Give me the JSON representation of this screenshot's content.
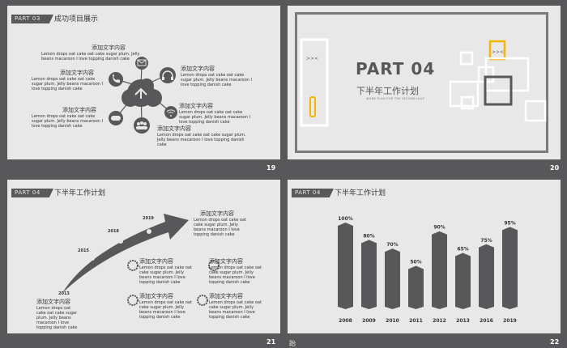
{
  "colors": {
    "background": "#58585a",
    "slide": "#e8e8e8",
    "bar": "#58585a",
    "accent": "#f4b400"
  },
  "slide1": {
    "tag": "PART 03",
    "title": "成功项目展示",
    "number": "19",
    "items": [
      {
        "head": "添加文字内容",
        "body": "Lemon drops oat cake oat cake sugar plum. Jelly beans macaroon I love topping danish cake"
      },
      {
        "head": "添加文字内容",
        "body": "Lemon drops oat cake oat cake sugar plum. Jelly beans macaroon I love topping danish cake"
      },
      {
        "head": "添加文字内容",
        "body": "Lemon drops oat cake oat cake sugar plum. Jelly beans macaroon I love topping danish cake"
      },
      {
        "head": "添加文字内容",
        "body": "Lemon drops oat cake oat cake sugar plum. Jelly beans macaroon I love topping danish cake"
      },
      {
        "head": "添加文字内容",
        "body": "Lemon drops oat cake oat cake sugar plum. Jelly beans macaroon I love topping danish cake"
      },
      {
        "head": "添加文字内容",
        "body": "Lemon drops oat cake oat cake sugar plum. Jelly beans macaroon I love topping danish cake"
      }
    ],
    "icons": [
      "mail-icon",
      "phone-icon",
      "headphones-icon",
      "gamepad-icon",
      "users-icon",
      "wifi-icon",
      "cloud-icon"
    ]
  },
  "slide2": {
    "big": "PART 04",
    "sub": "下半年工作计划",
    "small": "WORK PLAN FOR THE SECOND HALF",
    "number": "20"
  },
  "slide3": {
    "tag": "PART 04",
    "title": "下半年工作计划",
    "number": "21",
    "years": [
      "2019",
      "2018",
      "2015",
      "2013"
    ],
    "main": {
      "head": "添加文字内容",
      "body": "Lemon drops oat cake oat cake sugar plum. Jelly beans macaroon I love topping danish cake"
    },
    "bottom": {
      "head": "添加文字内容",
      "body": "Lemon drops oat cake oat cake sugar plum. Jelly beans macaroon I love topping danish cake"
    },
    "grid": [
      {
        "head": "添加文字内容",
        "body": "Lemon drops oat cake oat cake sugar plum. Jelly beans macaroon I love topping danish cake"
      },
      {
        "head": "添加文字内容",
        "body": "Lemon drops oat cake oat cake sugar plum. Jelly beans macaroon I love topping danish cake"
      },
      {
        "head": "添加文字内容",
        "body": "Lemon drops oat cake oat cake sugar plum. Jelly beans macaroon I love topping danish cake"
      },
      {
        "head": "添加文字内容",
        "body": "Lemon drops oat cake oat cake sugar plum. Jelly beans macaroon I love topping danish cake"
      }
    ]
  },
  "slide4": {
    "tag": "PART 04",
    "title": "下半年工作计划",
    "number": "22"
  },
  "chart_data": {
    "type": "bar",
    "categories": [
      "2008",
      "2009",
      "2010",
      "2011",
      "2012",
      "2013",
      "2016",
      "2019"
    ],
    "values": [
      100,
      80,
      70,
      50,
      90,
      65,
      75,
      95
    ],
    "value_labels": [
      "100%",
      "80%",
      "70%",
      "50%",
      "90%",
      "65%",
      "75%",
      "95%"
    ],
    "ylim": [
      0,
      100
    ],
    "grid": false,
    "legend": "none"
  },
  "footer_char": "跆"
}
